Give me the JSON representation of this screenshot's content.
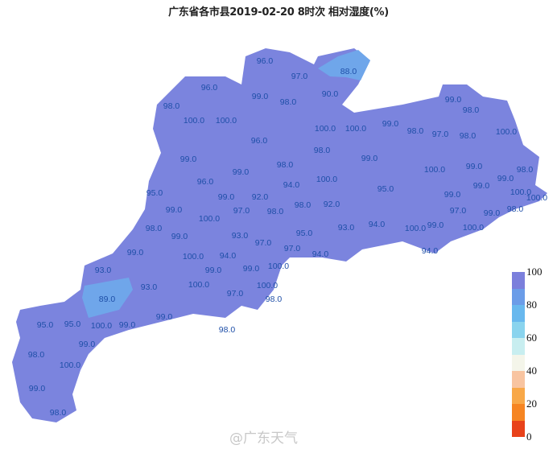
{
  "title": "广东省各市县2019-02-20  8时次 相对湿度(%)",
  "map": {
    "fill_default": "#7b84de",
    "highlight_regions": [
      {
        "value": "88.0",
        "color": "#6fa6ea"
      },
      {
        "value": "89.0",
        "color": "#6fa6ea"
      }
    ],
    "labels": [
      "96.0",
      "97.0",
      "88.0",
      "96.0",
      "99.0",
      "98.0",
      "90.0",
      "98.0",
      "100.0",
      "100.0",
      "100.0",
      "100.0",
      "99.0",
      "98.0",
      "97.0",
      "98.0",
      "100.0",
      "99.0",
      "98.0",
      "96.0",
      "98.0",
      "99.0",
      "99.0",
      "98.0",
      "99.0",
      "100.0",
      "100.0",
      "99.0",
      "98.0",
      "99.0",
      "96.0",
      "94.0",
      "95.0",
      "99.0",
      "92.0",
      "95.0",
      "99.0",
      "99.0",
      "100.0",
      "100.0",
      "99.0",
      "97.0",
      "98.0",
      "98.0",
      "92.0",
      "97.0",
      "99.0",
      "98.0",
      "100.0",
      "98.0",
      "99.0",
      "93.0",
      "93.0",
      "94.0",
      "95.0",
      "100.0",
      "99.0",
      "100.0",
      "97.0",
      "97.0",
      "94.0",
      "94.0",
      "99.0",
      "100.0",
      "94.0",
      "99.0",
      "99.0",
      "100.0",
      "93.0",
      "93.0",
      "100.0",
      "100.0",
      "89.0",
      "97.0",
      "98.0",
      "99.0",
      "98.0",
      "95.0",
      "95.0",
      "100.0",
      "99.0",
      "99.0",
      "98.0",
      "100.0",
      "99.0",
      "98.0"
    ]
  },
  "legend": {
    "ticks": [
      "100",
      "80",
      "60",
      "40",
      "20",
      "0"
    ],
    "colors": [
      "#7b7fdc",
      "#6b9ce8",
      "#68b8ee",
      "#8ad4ee",
      "#c8eef0",
      "#f4f5ea",
      "#f8c4a0",
      "#f8a848",
      "#f68522",
      "#e8421a"
    ]
  },
  "watermark": "@广东天气"
}
